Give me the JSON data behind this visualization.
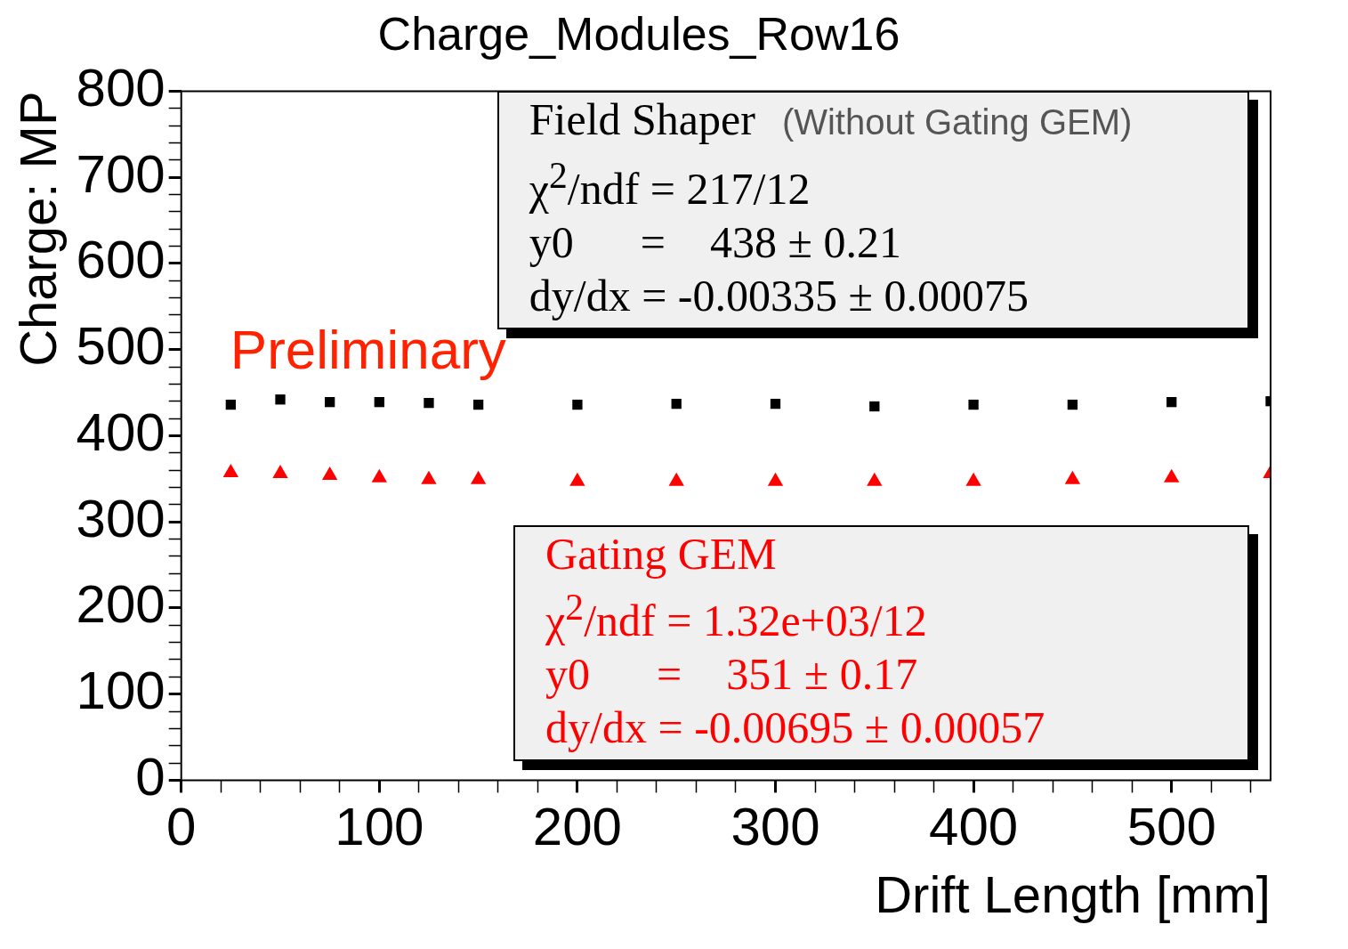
{
  "chart_data": {
    "type": "scatter",
    "title": "Charge_Modules_Row16",
    "xlabel": "Drift Length [mm]",
    "ylabel": "Charge: MP",
    "x": [
      25,
      50,
      75,
      100,
      125,
      150,
      200,
      250,
      300,
      350,
      400,
      450,
      500,
      550
    ],
    "series": [
      {
        "name": "Field Shaper",
        "color": "#000000",
        "marker": "square",
        "values": [
          436,
          442,
          439,
          439,
          438,
          436,
          436,
          437,
          437,
          434,
          436,
          436,
          439,
          440
        ]
      },
      {
        "name": "Gating GEM",
        "color": "#ff0000",
        "marker": "triangle",
        "values": [
          357,
          356,
          354,
          351,
          349,
          349,
          347,
          347,
          347,
          347,
          347,
          349,
          351,
          356
        ]
      }
    ],
    "xlim": [
      0,
      550
    ],
    "ylim": [
      0,
      800
    ],
    "xticks": [
      0,
      {
        "value": 20,
        "label": null
      },
      {
        "value": 40,
        "label": null
      },
      {
        "value": 60,
        "label": null
      },
      {
        "value": 80,
        "label": null
      },
      100,
      {
        "value": 120,
        "label": null
      },
      {
        "value": 140,
        "label": null
      },
      {
        "value": 160,
        "label": null
      },
      {
        "value": 180,
        "label": null
      },
      200,
      {
        "value": 220,
        "label": null
      },
      {
        "value": 240,
        "label": null
      },
      {
        "value": 260,
        "label": null
      },
      {
        "value": 280,
        "label": null
      },
      300,
      {
        "value": 320,
        "label": null
      },
      {
        "value": 340,
        "label": null
      },
      {
        "value": 360,
        "label": null
      },
      {
        "value": 380,
        "label": null
      },
      400,
      {
        "value": 420,
        "label": null
      },
      {
        "value": 440,
        "label": null
      },
      {
        "value": 460,
        "label": null
      },
      {
        "value": 480,
        "label": null
      },
      500,
      {
        "value": 520,
        "label": null
      },
      {
        "value": 540,
        "label": null
      }
    ],
    "yticks": [
      0,
      {
        "value": 20,
        "label": null
      },
      {
        "value": 40,
        "label": null
      },
      {
        "value": 60,
        "label": null
      },
      {
        "value": 80,
        "label": null
      },
      100,
      {
        "value": 120,
        "label": null
      },
      {
        "value": 140,
        "label": null
      },
      {
        "value": 160,
        "label": null
      },
      {
        "value": 180,
        "label": null
      },
      200,
      {
        "value": 220,
        "label": null
      },
      {
        "value": 240,
        "label": null
      },
      {
        "value": 260,
        "label": null
      },
      {
        "value": 280,
        "label": null
      },
      300,
      {
        "value": 320,
        "label": null
      },
      {
        "value": 340,
        "label": null
      },
      {
        "value": 360,
        "label": null
      },
      {
        "value": 380,
        "label": null
      },
      400,
      {
        "value": 420,
        "label": null
      },
      {
        "value": 440,
        "label": null
      },
      {
        "value": 460,
        "label": null
      },
      {
        "value": 480,
        "label": null
      },
      500,
      {
        "value": 520,
        "label": null
      },
      {
        "value": 540,
        "label": null
      },
      {
        "value": 560,
        "label": null
      },
      {
        "value": 580,
        "label": null
      },
      600,
      {
        "value": 620,
        "label": null
      },
      {
        "value": 640,
        "label": null
      },
      {
        "value": 660,
        "label": null
      },
      {
        "value": 680,
        "label": null
      },
      700,
      {
        "value": 720,
        "label": null
      },
      {
        "value": 740,
        "label": null
      },
      {
        "value": 760,
        "label": null
      },
      {
        "value": 780,
        "label": null
      },
      800
    ],
    "grid": false,
    "legend": false,
    "annotations": [
      "Preliminary",
      "(Without Gating GEM)",
      "χ$^{2}$/ndf = 217/12",
      "y0      =    438 ± 0.21",
      "dy/dx = -0.00335 ± 0.00075",
      "χ$^{2}$/ndf = 1.32e+03/12",
      "y0      =    351 ± 0.17",
      "dy/dx = -0.00695 ± 0.00057"
    ]
  }
}
